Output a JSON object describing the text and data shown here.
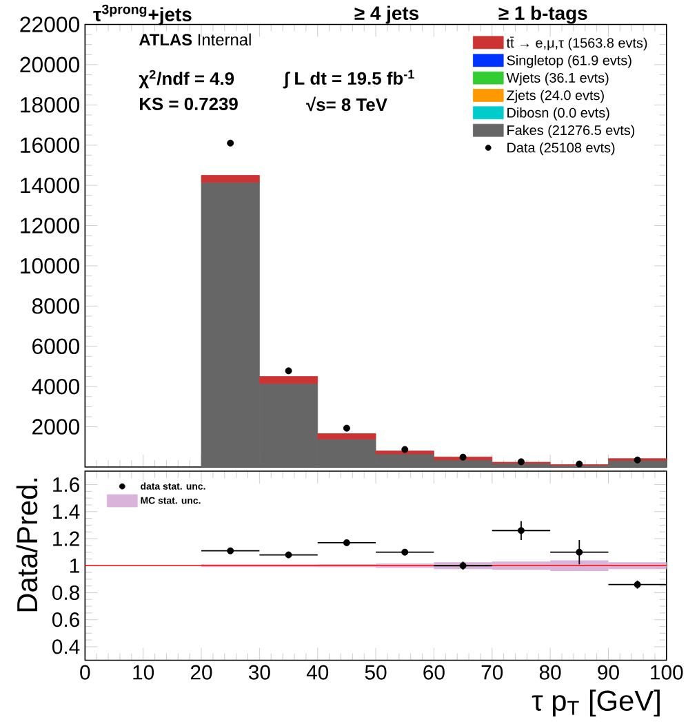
{
  "chart_data": [
    {
      "type": "bar",
      "title": "τ$^{3prong}$+jets",
      "annotations": [
        "≥ 4  jets",
        "≥ 1  b-tags",
        "**ATLAS** Internal",
        "χ$^{2}$/ndf = 4.9",
        "KS = 0.7239",
        "∫ L dt = 19.5 fb$^{-1}$",
        "√s= 8 TeV"
      ],
      "stacked": true,
      "legend": "top right",
      "tick_labels": "y",
      "x": [
        25,
        35,
        45,
        55,
        65,
        75,
        85,
        95
      ],
      "xlim": [
        0,
        100
      ],
      "xticks": [
        0,
        10,
        20,
        30,
        40,
        50,
        60,
        70,
        80,
        90,
        100
      ],
      "ylim": [
        0,
        22000
      ],
      "yticks": [
        2000,
        4000,
        6000,
        8000,
        10000,
        12000,
        14000,
        16000,
        18000,
        20000,
        22000
      ],
      "series": [
        {
          "name": "Fakes (21276.5 evts)",
          "color": "#666666",
          "values": [
            14150,
            4150,
            1390,
            650,
            350,
            180,
            90,
            330
          ]
        },
        {
          "name": "Dibosn (0.0 evts)",
          "color": "#00cccc",
          "values": [
            null,
            null,
            null,
            null,
            null,
            null,
            null,
            null
          ]
        },
        {
          "name": "Zjets (24.0 evts)",
          "color": "#ff9900",
          "values": [
            null,
            null,
            null,
            null,
            null,
            null,
            null,
            null
          ]
        },
        {
          "name": "Wjets (36.1 evts)",
          "color": "#33cc33",
          "values": [
            null,
            null,
            null,
            null,
            null,
            null,
            null,
            null
          ]
        },
        {
          "name": "Singletop (61.9 evts)",
          "color": "#0033ff",
          "values": [
            null,
            null,
            null,
            null,
            null,
            null,
            null,
            null
          ]
        },
        {
          "name": "tt̄ → e,μ,τ (1563.8 evts)",
          "color": "#cc3333",
          "values": [
            350,
            350,
            270,
            150,
            150,
            60,
            30,
            90
          ]
        },
        {
          "name": "Data (25108 evts)",
          "type": "scatter",
          "marker": "circle",
          "color": "#000000",
          "values": [
            16100,
            4780,
            1930,
            870,
            490,
            260,
            150,
            350
          ]
        }
      ]
    },
    {
      "type": "bar",
      "xlabel": "τ p$_{T}$ [GeV]",
      "ylabel": "Data/Pred.",
      "legend": "top left",
      "x": [
        25,
        35,
        45,
        55,
        65,
        75,
        85,
        95
      ],
      "xlim": [
        0,
        100
      ],
      "xticks": [
        0,
        10,
        20,
        30,
        40,
        50,
        60,
        70,
        80,
        90,
        100
      ],
      "ylim": [
        0.3,
        1.7
      ],
      "yticks": [
        0.4,
        0.6,
        0.8,
        1,
        1.2,
        1.4,
        1.6
      ],
      "ref_lines": [
        {
          "axis": "y",
          "value": 1,
          "color": "#ff0000"
        }
      ],
      "series": [
        {
          "name": "data stat. unc.",
          "type": "scatter",
          "marker": "circle",
          "color": "#000000",
          "values": [
            1.11,
            1.08,
            1.17,
            1.1,
            1.0,
            1.26,
            1.1,
            0.86
          ],
          "errors": [
            0.01,
            0.01,
            0.02,
            0.02,
            0.03,
            0.07,
            0.09,
            0.03
          ],
          "xerrors": [
            5,
            5,
            5,
            5,
            5,
            5,
            5,
            5
          ]
        },
        {
          "name": "MC stat. unc.",
          "type": "step",
          "marker": "none",
          "color": "#d9b3d9",
          "x": [
            20,
            30,
            40,
            50,
            60,
            70,
            80,
            90,
            100
          ],
          "values": [
            1,
            1,
            1,
            1,
            1,
            1,
            1,
            1,
            1
          ],
          "lower": [
            null,
            null,
            0.99,
            0.985,
            0.975,
            0.97,
            0.96,
            0.975,
            0.975
          ],
          "upper": [
            null,
            null,
            1.01,
            1.015,
            1.025,
            1.03,
            1.04,
            1.025,
            1.025
          ]
        }
      ]
    }
  ]
}
